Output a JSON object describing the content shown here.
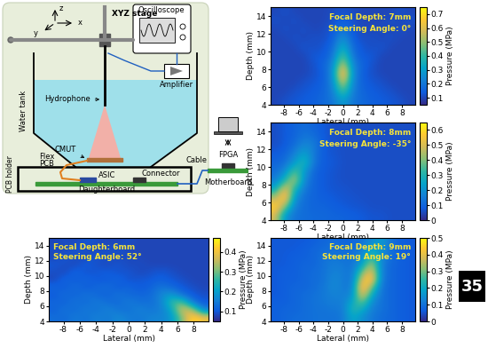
{
  "diagram": {
    "axis_z": "z",
    "axis_y": "y",
    "axis_x": "x",
    "stage": "XYZ stage",
    "oscilloscope": "Oscilloscope",
    "amplifier": "Amplifier",
    "tank": "Water tank",
    "hydrophone": "Hydrophone",
    "cmut": "CMUT",
    "flex": "Flex",
    "pcb": "PCB",
    "connector": "Connector",
    "holder": "PCB holder",
    "asic": "ASIC",
    "daughterboard": "Daughterboard",
    "cable": "Cable",
    "fpga": "FPGA",
    "motherboard": "Motherboard"
  },
  "badge": "35",
  "chart_data": [
    {
      "type": "heatmap",
      "annotations": [
        "Focal Depth: 7mm",
        "Steering Angle: 0°"
      ],
      "xlabel": "Lateral (mm)",
      "ylabel": "Depth (mm)",
      "xlim": [
        -9.8,
        9.8
      ],
      "ylim": [
        4,
        15
      ],
      "xticks": [
        -8,
        -6,
        -4,
        -2,
        0,
        2,
        4,
        6,
        8
      ],
      "yticks": [
        4,
        6,
        8,
        10,
        12,
        14
      ],
      "colorbar_label": "Pressure (MPa)",
      "colorbar_range": [
        0.05,
        0.75
      ],
      "colorbar_ticks": [
        0.1,
        0.2,
        0.3,
        0.4,
        0.5,
        0.6,
        0.7
      ],
      "cells": [
        [
          0.1,
          0.12,
          0.1,
          0.1,
          0.1,
          0.1,
          0.11,
          0.12,
          0.11,
          0.1,
          0.1,
          0.1,
          0.1,
          0.12,
          0.1
        ],
        [
          0.12,
          0.1,
          0.12,
          0.1,
          0.1,
          0.1,
          0.12,
          0.15,
          0.12,
          0.1,
          0.1,
          0.1,
          0.12,
          0.1,
          0.12
        ],
        [
          0.1,
          0.12,
          0.1,
          0.12,
          0.1,
          0.11,
          0.13,
          0.2,
          0.13,
          0.11,
          0.1,
          0.12,
          0.1,
          0.12,
          0.1
        ],
        [
          0.1,
          0.1,
          0.12,
          0.1,
          0.12,
          0.11,
          0.15,
          0.28,
          0.15,
          0.11,
          0.12,
          0.1,
          0.12,
          0.1,
          0.1
        ],
        [
          0.1,
          0.1,
          0.1,
          0.13,
          0.11,
          0.13,
          0.17,
          0.36,
          0.17,
          0.13,
          0.11,
          0.13,
          0.1,
          0.1,
          0.1
        ],
        [
          0.1,
          0.1,
          0.1,
          0.1,
          0.14,
          0.13,
          0.2,
          0.46,
          0.2,
          0.13,
          0.14,
          0.1,
          0.1,
          0.1,
          0.1
        ],
        [
          0.1,
          0.1,
          0.1,
          0.1,
          0.12,
          0.16,
          0.24,
          0.6,
          0.24,
          0.16,
          0.12,
          0.1,
          0.1,
          0.1,
          0.1
        ],
        [
          0.1,
          0.1,
          0.1,
          0.1,
          0.12,
          0.14,
          0.26,
          0.74,
          0.26,
          0.14,
          0.12,
          0.1,
          0.1,
          0.1,
          0.1
        ],
        [
          0.1,
          0.1,
          0.1,
          0.12,
          0.13,
          0.15,
          0.24,
          0.6,
          0.24,
          0.15,
          0.13,
          0.12,
          0.1,
          0.1,
          0.1
        ],
        [
          0.1,
          0.1,
          0.12,
          0.13,
          0.14,
          0.16,
          0.22,
          0.45,
          0.22,
          0.16,
          0.14,
          0.13,
          0.12,
          0.1,
          0.1
        ],
        [
          0.1,
          0.12,
          0.13,
          0.14,
          0.15,
          0.17,
          0.2,
          0.3,
          0.2,
          0.17,
          0.15,
          0.14,
          0.13,
          0.12,
          0.1
        ]
      ]
    },
    {
      "type": "heatmap",
      "annotations": [
        "Focal Depth: 8mm",
        "Steering Angle: -35°"
      ],
      "xlabel": "Lateral (mm)",
      "ylabel": "Depth (mm)",
      "xlim": [
        -9.8,
        9.8
      ],
      "ylim": [
        4,
        15
      ],
      "xticks": [
        -8,
        -6,
        -4,
        -2,
        0,
        2,
        4,
        6,
        8
      ],
      "yticks": [
        4,
        6,
        8,
        10,
        12,
        14
      ],
      "colorbar_label": "Pressure (MPa)",
      "colorbar_range": [
        0,
        0.65
      ],
      "colorbar_ticks": [
        0,
        0.1,
        0.2,
        0.3,
        0.4,
        0.5,
        0.6
      ],
      "cells": [
        [
          0.06,
          0.08,
          0.1,
          0.12,
          0.1,
          0.08,
          0.06,
          0.06,
          0.06,
          0.06,
          0.06,
          0.06,
          0.06,
          0.06,
          0.06
        ],
        [
          0.06,
          0.08,
          0.1,
          0.14,
          0.12,
          0.08,
          0.06,
          0.06,
          0.06,
          0.06,
          0.06,
          0.06,
          0.06,
          0.06,
          0.06
        ],
        [
          0.06,
          0.08,
          0.12,
          0.18,
          0.16,
          0.08,
          0.07,
          0.06,
          0.06,
          0.06,
          0.06,
          0.06,
          0.06,
          0.06,
          0.06
        ],
        [
          0.08,
          0.1,
          0.16,
          0.25,
          0.14,
          0.08,
          0.07,
          0.06,
          0.06,
          0.06,
          0.06,
          0.06,
          0.06,
          0.06,
          0.06
        ],
        [
          0.1,
          0.12,
          0.22,
          0.32,
          0.14,
          0.08,
          0.08,
          0.06,
          0.06,
          0.06,
          0.06,
          0.06,
          0.06,
          0.06,
          0.06
        ],
        [
          0.12,
          0.18,
          0.38,
          0.22,
          0.1,
          0.08,
          0.07,
          0.06,
          0.06,
          0.06,
          0.06,
          0.06,
          0.06,
          0.06,
          0.06
        ],
        [
          0.15,
          0.3,
          0.48,
          0.18,
          0.1,
          0.08,
          0.07,
          0.06,
          0.06,
          0.06,
          0.06,
          0.06,
          0.06,
          0.06,
          0.06
        ],
        [
          0.25,
          0.55,
          0.3,
          0.14,
          0.1,
          0.08,
          0.07,
          0.07,
          0.06,
          0.06,
          0.06,
          0.06,
          0.06,
          0.06,
          0.06
        ],
        [
          0.45,
          0.62,
          0.2,
          0.12,
          0.1,
          0.09,
          0.08,
          0.07,
          0.07,
          0.06,
          0.06,
          0.06,
          0.06,
          0.06,
          0.06
        ],
        [
          0.6,
          0.4,
          0.15,
          0.12,
          0.1,
          0.1,
          0.09,
          0.08,
          0.07,
          0.07,
          0.06,
          0.06,
          0.06,
          0.06,
          0.06
        ],
        [
          0.5,
          0.2,
          0.13,
          0.12,
          0.11,
          0.11,
          0.1,
          0.1,
          0.09,
          0.08,
          0.07,
          0.07,
          0.06,
          0.06,
          0.06
        ]
      ]
    },
    {
      "type": "heatmap",
      "annotations": [
        "Focal Depth: 6mm",
        "Steering Angle: 52°"
      ],
      "xlabel": "Lateral (mm)",
      "ylabel": "Depth (mm)",
      "xlim": [
        -9.8,
        9.8
      ],
      "ylim": [
        4,
        15
      ],
      "xticks": [
        -8,
        -6,
        -4,
        -2,
        0,
        2,
        4,
        6,
        8
      ],
      "yticks": [
        4,
        6,
        8,
        10,
        12,
        14
      ],
      "colorbar_label": "Pressure (MPa)",
      "colorbar_range": [
        0.05,
        0.47
      ],
      "colorbar_ticks": [
        0.1,
        0.2,
        0.3,
        0.4
      ],
      "cells": [
        [
          0.08,
          0.09,
          0.08,
          0.1,
          0.09,
          0.08,
          0.08,
          0.09,
          0.08,
          0.08,
          0.08,
          0.08,
          0.08,
          0.08,
          0.08
        ],
        [
          0.09,
          0.08,
          0.1,
          0.09,
          0.08,
          0.09,
          0.1,
          0.08,
          0.08,
          0.08,
          0.08,
          0.08,
          0.08,
          0.08,
          0.08
        ],
        [
          0.08,
          0.1,
          0.09,
          0.08,
          0.1,
          0.09,
          0.08,
          0.09,
          0.08,
          0.08,
          0.08,
          0.08,
          0.08,
          0.08,
          0.08
        ],
        [
          0.1,
          0.09,
          0.08,
          0.11,
          0.09,
          0.08,
          0.1,
          0.08,
          0.09,
          0.08,
          0.08,
          0.08,
          0.08,
          0.08,
          0.08
        ],
        [
          0.09,
          0.08,
          0.12,
          0.09,
          0.1,
          0.11,
          0.09,
          0.1,
          0.08,
          0.09,
          0.1,
          0.09,
          0.08,
          0.08,
          0.08
        ],
        [
          0.08,
          0.12,
          0.1,
          0.12,
          0.1,
          0.1,
          0.12,
          0.09,
          0.1,
          0.1,
          0.11,
          0.1,
          0.09,
          0.08,
          0.08
        ],
        [
          0.12,
          0.1,
          0.13,
          0.1,
          0.12,
          0.13,
          0.1,
          0.12,
          0.1,
          0.11,
          0.14,
          0.12,
          0.1,
          0.09,
          0.08
        ],
        [
          0.1,
          0.13,
          0.11,
          0.14,
          0.12,
          0.11,
          0.14,
          0.12,
          0.12,
          0.12,
          0.16,
          0.2,
          0.13,
          0.1,
          0.09
        ],
        [
          0.12,
          0.11,
          0.14,
          0.12,
          0.15,
          0.13,
          0.12,
          0.15,
          0.13,
          0.13,
          0.15,
          0.26,
          0.3,
          0.14,
          0.1
        ],
        [
          0.11,
          0.14,
          0.12,
          0.15,
          0.13,
          0.16,
          0.14,
          0.13,
          0.16,
          0.14,
          0.15,
          0.2,
          0.38,
          0.35,
          0.15
        ],
        [
          0.13,
          0.12,
          0.15,
          0.13,
          0.16,
          0.14,
          0.17,
          0.15,
          0.14,
          0.16,
          0.16,
          0.18,
          0.3,
          0.45,
          0.4
        ]
      ]
    },
    {
      "type": "heatmap",
      "annotations": [
        "Focal Depth: 9mm",
        "Steering Angle: 19°"
      ],
      "xlabel": "Lateral (mm)",
      "ylabel": "Depth (mm)",
      "xlim": [
        -9.8,
        9.8
      ],
      "ylim": [
        4,
        15
      ],
      "xticks": [
        -8,
        -6,
        -4,
        -2,
        0,
        2,
        4,
        6,
        8
      ],
      "yticks": [
        4,
        6,
        8,
        10,
        12,
        14
      ],
      "colorbar_label": "Pressure (MPa)",
      "colorbar_range": [
        0,
        0.5
      ],
      "colorbar_ticks": [
        0,
        0.1,
        0.2,
        0.3,
        0.4,
        0.5
      ],
      "cells": [
        [
          0.06,
          0.06,
          0.06,
          0.06,
          0.07,
          0.08,
          0.09,
          0.08,
          0.08,
          0.1,
          0.14,
          0.18,
          0.1,
          0.07,
          0.06
        ],
        [
          0.06,
          0.06,
          0.06,
          0.07,
          0.08,
          0.09,
          0.1,
          0.09,
          0.09,
          0.12,
          0.2,
          0.16,
          0.09,
          0.07,
          0.06
        ],
        [
          0.06,
          0.06,
          0.07,
          0.07,
          0.08,
          0.1,
          0.11,
          0.1,
          0.1,
          0.14,
          0.28,
          0.14,
          0.09,
          0.07,
          0.06
        ],
        [
          0.06,
          0.06,
          0.07,
          0.08,
          0.08,
          0.1,
          0.12,
          0.11,
          0.1,
          0.18,
          0.36,
          0.12,
          0.08,
          0.07,
          0.06
        ],
        [
          0.06,
          0.07,
          0.07,
          0.08,
          0.09,
          0.1,
          0.13,
          0.12,
          0.1,
          0.3,
          0.42,
          0.12,
          0.08,
          0.07,
          0.06
        ],
        [
          0.06,
          0.07,
          0.07,
          0.08,
          0.09,
          0.1,
          0.14,
          0.12,
          0.1,
          0.4,
          0.46,
          0.11,
          0.08,
          0.07,
          0.06
        ],
        [
          0.06,
          0.07,
          0.08,
          0.08,
          0.09,
          0.11,
          0.14,
          0.12,
          0.11,
          0.48,
          0.3,
          0.1,
          0.08,
          0.07,
          0.06
        ],
        [
          0.06,
          0.07,
          0.08,
          0.09,
          0.1,
          0.11,
          0.13,
          0.12,
          0.14,
          0.42,
          0.2,
          0.1,
          0.08,
          0.07,
          0.06
        ],
        [
          0.07,
          0.07,
          0.08,
          0.09,
          0.1,
          0.11,
          0.12,
          0.12,
          0.2,
          0.3,
          0.14,
          0.1,
          0.08,
          0.07,
          0.06
        ],
        [
          0.07,
          0.08,
          0.08,
          0.09,
          0.1,
          0.1,
          0.11,
          0.11,
          0.24,
          0.2,
          0.12,
          0.1,
          0.08,
          0.07,
          0.06
        ],
        [
          0.07,
          0.08,
          0.09,
          0.09,
          0.1,
          0.1,
          0.1,
          0.11,
          0.2,
          0.15,
          0.11,
          0.09,
          0.08,
          0.07,
          0.06
        ]
      ]
    }
  ]
}
